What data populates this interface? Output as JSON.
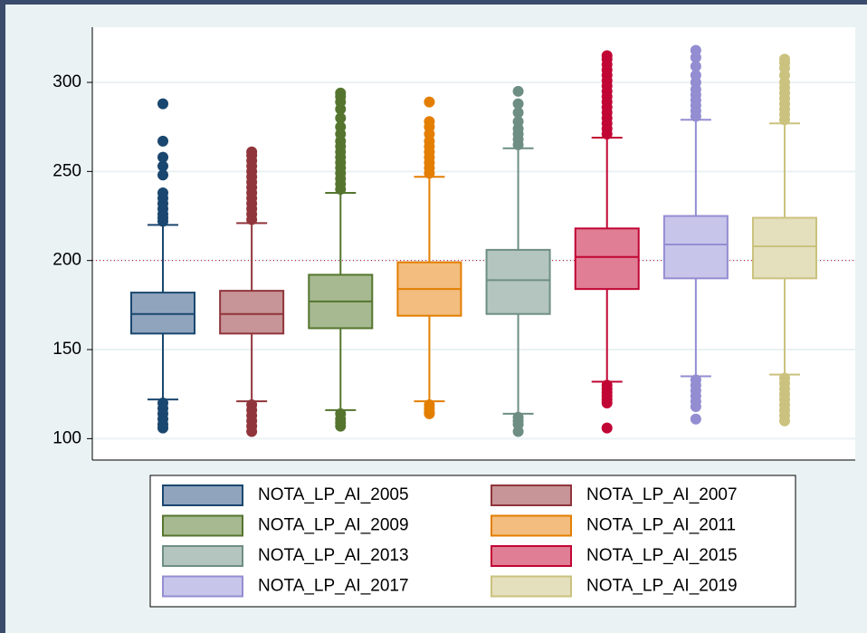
{
  "chart_data": {
    "type": "box",
    "ylim": [
      88,
      331
    ],
    "yticks": [
      100,
      150,
      200,
      250,
      300
    ],
    "grid": true,
    "reference_line": {
      "value": 200,
      "color": "#c10534"
    },
    "series": [
      {
        "name": "NOTA_LP_AI_2005",
        "color": "#1a476f",
        "fill": "#90a4bd",
        "whisker_low": 122,
        "q1": 159,
        "median": 170,
        "q3": 182,
        "whisker_high": 220,
        "outliers": [
          222,
          224,
          226,
          229,
          232,
          235,
          238,
          248,
          253,
          258,
          267,
          288,
          120,
          117,
          114,
          111,
          108,
          106
        ]
      },
      {
        "name": "NOTA_LP_AI_2007",
        "color": "#90353b",
        "fill": "#c79497",
        "whisker_low": 121,
        "q1": 159,
        "median": 170,
        "q3": 183,
        "whisker_high": 221,
        "outliers": [
          223,
          226,
          229,
          232,
          235,
          238,
          241,
          244,
          247,
          250,
          253,
          256,
          259,
          261,
          119,
          116,
          113,
          110,
          107,
          104
        ]
      },
      {
        "name": "NOTA_LP_AI_2009",
        "color": "#55752f",
        "fill": "#a7b990",
        "whisker_low": 116,
        "q1": 162,
        "median": 177,
        "q3": 192,
        "whisker_high": 238,
        "outliers": [
          240,
          243,
          246,
          249,
          252,
          255,
          258,
          261,
          264,
          267,
          271,
          275,
          280,
          285,
          289,
          292,
          294,
          114,
          111,
          109,
          107
        ]
      },
      {
        "name": "NOTA_LP_AI_2011",
        "color": "#e37e00",
        "fill": "#f2bd7f",
        "whisker_low": 121,
        "q1": 169,
        "median": 184,
        "q3": 199,
        "whisker_high": 247,
        "outliers": [
          249,
          252,
          255,
          258,
          261,
          264,
          267,
          271,
          275,
          278,
          289,
          119,
          117,
          115,
          114
        ]
      },
      {
        "name": "NOTA_LP_AI_2013",
        "color": "#6e8e84",
        "fill": "#b4c5bf",
        "whisker_low": 114,
        "q1": 170,
        "median": 189,
        "q3": 206,
        "whisker_high": 263,
        "outliers": [
          265,
          268,
          271,
          274,
          278,
          283,
          288,
          295,
          112,
          110,
          108,
          104
        ]
      },
      {
        "name": "NOTA_LP_AI_2015",
        "color": "#c10534",
        "fill": "#e07e96",
        "whisker_low": 132,
        "q1": 184,
        "median": 202,
        "q3": 218,
        "whisker_high": 269,
        "outliers": [
          271,
          274,
          277,
          280,
          283,
          286,
          289,
          292,
          295,
          298,
          301,
          304,
          307,
          310,
          313,
          315,
          130,
          128,
          126,
          124,
          122,
          120,
          106
        ]
      },
      {
        "name": "NOTA_LP_AI_2017",
        "color": "#938dd2",
        "fill": "#c8c5ea",
        "whisker_low": 135,
        "q1": 190,
        "median": 209,
        "q3": 225,
        "whisker_high": 279,
        "outliers": [
          281,
          284,
          287,
          290,
          293,
          296,
          300,
          304,
          309,
          314,
          318,
          133,
          130,
          127,
          124,
          121,
          118,
          111
        ]
      },
      {
        "name": "NOTA_LP_AI_2019",
        "color": "#cac27e",
        "fill": "#e4dfbd",
        "whisker_low": 136,
        "q1": 190,
        "median": 208,
        "q3": 224,
        "whisker_high": 277,
        "outliers": [
          279,
          282,
          285,
          288,
          291,
          294,
          297,
          300,
          304,
          308,
          311,
          313,
          134,
          131,
          128,
          125,
          122,
          119,
          116,
          113,
          110
        ]
      }
    ]
  }
}
